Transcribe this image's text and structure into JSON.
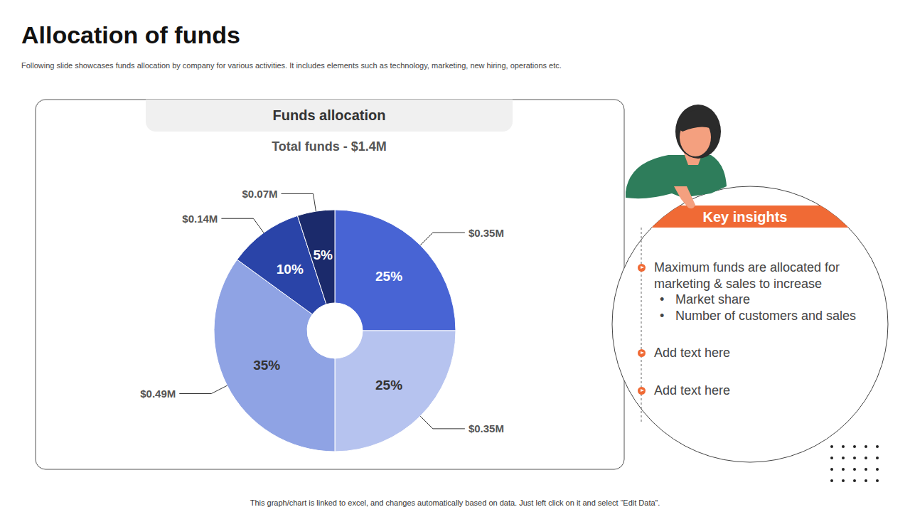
{
  "page_title": "Allocation of funds",
  "description": "Following slide showcases funds allocation by company for various activities. It includes elements such as technology, marketing, new hiring, operations etc.",
  "chart_data": {
    "type": "pie",
    "title": "Funds allocation",
    "subtitle": "Total funds - $1.4M",
    "values": [
      25,
      25,
      35,
      10,
      5
    ],
    "value_labels": [
      "25%",
      "25%",
      "35%",
      "10%",
      "5%"
    ],
    "amounts": [
      0.35,
      0.35,
      0.49,
      0.14,
      0.07
    ],
    "amount_labels": [
      "$0.35M",
      "$0.35M",
      "$0.49M",
      "$0.14M",
      "$0.07M"
    ],
    "colors": [
      "#4864d4",
      "#b6c3ef",
      "#8fa3e4",
      "#2a44a8",
      "#1b2a6b"
    ],
    "data_labels": true
  },
  "key_insights": {
    "title": "Key insights",
    "items": [
      {
        "text": "Maximum funds are allocated for marketing & sales to increase",
        "subitems": [
          "Market share",
          "Number of customers and sales"
        ]
      },
      {
        "text": "Add text here"
      },
      {
        "text": "Add text here"
      }
    ]
  },
  "footer": "This graph/chart is linked to excel, and changes automatically based on data. Just left click on it and select “Edit Data”."
}
